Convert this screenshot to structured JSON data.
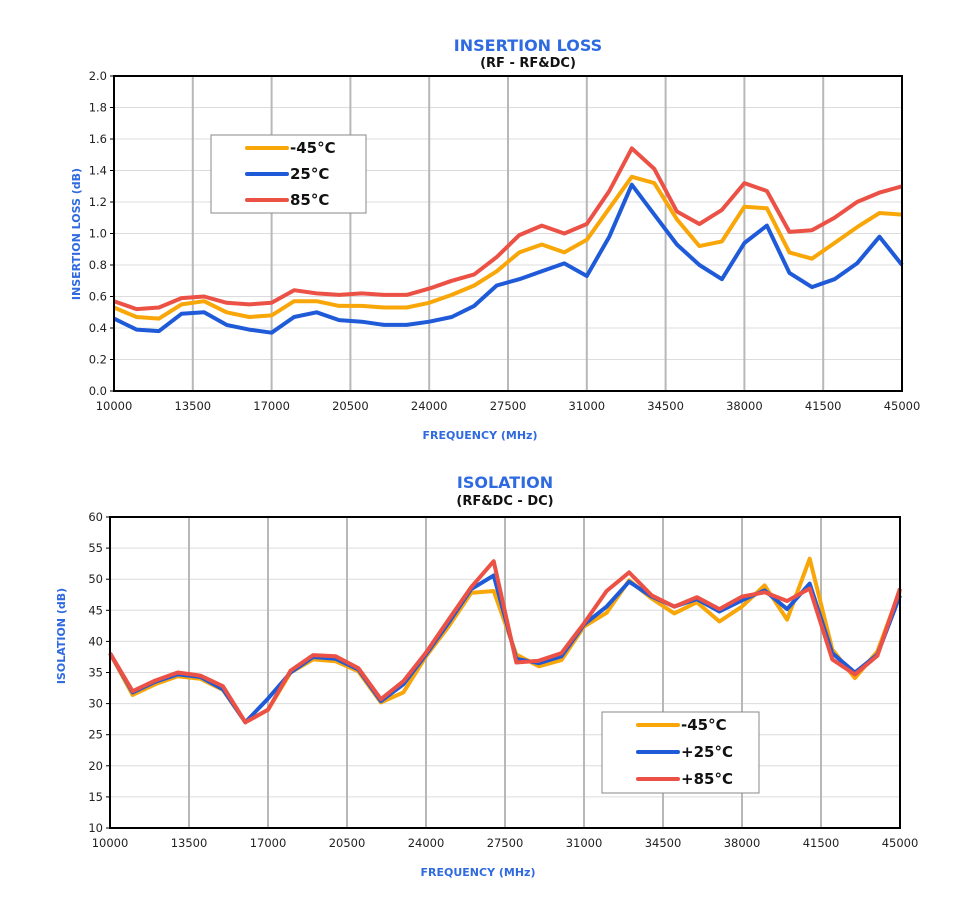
{
  "colors": {
    "-45": "#F8A608",
    "25": "#1F5BD8",
    "85": "#EC5146",
    "title": "#2F6AE0"
  },
  "chart_data": [
    {
      "type": "line",
      "title": "INSERTION LOSS",
      "subtitle": "(RF - RF&DC)",
      "xlabel": "FREQUENCY (MHz)",
      "ylabel": "INSERTION LOSS (dB)",
      "xlim": [
        10000,
        45000
      ],
      "ylim": [
        0,
        2.0
      ],
      "xticks": [
        10000,
        13500,
        17000,
        20500,
        24000,
        27500,
        31000,
        34500,
        38000,
        41500,
        45000
      ],
      "xtick_labels": [
        "10000",
        "13500",
        "17000",
        "20500",
        "24000",
        "27500",
        "31000",
        "34500",
        "38000",
        "41500",
        "45000"
      ],
      "yticks": [
        0,
        0.2,
        0.4,
        0.6,
        0.8,
        1.0,
        1.2,
        1.4,
        1.6,
        1.8,
        2.0
      ],
      "ytick_labels": [
        "0.0",
        "0.2",
        "0.4",
        "0.6",
        "0.8",
        "1.0",
        "1.2",
        "1.4",
        "1.6",
        "1.8",
        "2.0"
      ],
      "grid": true,
      "legend_position": "top-left",
      "x": [
        10000,
        11000,
        12000,
        13000,
        14000,
        15000,
        16000,
        17000,
        18000,
        19000,
        20000,
        21000,
        22000,
        23000,
        24000,
        25000,
        26000,
        27000,
        28000,
        29000,
        30000,
        31000,
        32000,
        33000,
        34000,
        35000,
        36000,
        37000,
        38000,
        39000,
        40000,
        41000,
        42000,
        43000,
        44000,
        45000
      ],
      "series": [
        {
          "name": "-45°C",
          "color_key": "-45",
          "values": [
            0.53,
            0.47,
            0.46,
            0.55,
            0.57,
            0.5,
            0.47,
            0.48,
            0.57,
            0.57,
            0.54,
            0.54,
            0.53,
            0.53,
            0.56,
            0.61,
            0.67,
            0.76,
            0.88,
            0.93,
            0.88,
            0.96,
            1.16,
            1.36,
            1.32,
            1.09,
            0.92,
            0.95,
            1.17,
            1.16,
            0.88,
            0.84,
            0.94,
            1.04,
            1.13,
            1.12
          ]
        },
        {
          "name": "25°C",
          "color_key": "25",
          "values": [
            0.46,
            0.39,
            0.38,
            0.49,
            0.5,
            0.42,
            0.39,
            0.37,
            0.47,
            0.5,
            0.45,
            0.44,
            0.42,
            0.42,
            0.44,
            0.47,
            0.54,
            0.67,
            0.71,
            0.76,
            0.81,
            0.73,
            0.98,
            1.31,
            1.12,
            0.93,
            0.8,
            0.71,
            0.94,
            1.05,
            0.75,
            0.66,
            0.71,
            0.81,
            0.98,
            0.8
          ]
        },
        {
          "name": "85°C",
          "color_key": "85",
          "values": [
            0.57,
            0.52,
            0.53,
            0.59,
            0.6,
            0.56,
            0.55,
            0.56,
            0.64,
            0.62,
            0.61,
            0.62,
            0.61,
            0.61,
            0.65,
            0.7,
            0.74,
            0.85,
            0.99,
            1.05,
            1.0,
            1.06,
            1.27,
            1.54,
            1.41,
            1.14,
            1.06,
            1.15,
            1.32,
            1.27,
            1.01,
            1.02,
            1.1,
            1.2,
            1.26,
            1.3
          ]
        }
      ]
    },
    {
      "type": "line",
      "title": "ISOLATION",
      "subtitle": "(RF&DC - DC)",
      "xlabel": "FREQUENCY (MHz)",
      "ylabel": "ISOLATION (dB)",
      "xlim": [
        10000,
        45000
      ],
      "ylim": [
        10,
        60
      ],
      "xticks": [
        10000,
        13500,
        17000,
        20500,
        24000,
        27500,
        31000,
        34500,
        38000,
        41500,
        45000
      ],
      "xtick_labels": [
        "10000",
        "13500",
        "17000",
        "20500",
        "24000",
        "27500",
        "31000",
        "34500",
        "38000",
        "41500",
        "45000"
      ],
      "yticks": [
        10,
        15,
        20,
        25,
        30,
        35,
        40,
        45,
        50,
        55,
        60
      ],
      "ytick_labels": [
        "10",
        "15",
        "20",
        "25",
        "30",
        "35",
        "40",
        "45",
        "50",
        "55",
        "60"
      ],
      "grid": true,
      "legend_position": "bottom-right",
      "x": [
        10000,
        11000,
        12000,
        13000,
        14000,
        15000,
        16000,
        17000,
        18000,
        19000,
        20000,
        21000,
        22000,
        23000,
        24000,
        25000,
        26000,
        27000,
        28000,
        29000,
        30000,
        31000,
        32000,
        33000,
        34000,
        35000,
        36000,
        37000,
        38000,
        39000,
        40000,
        41000,
        42000,
        43000,
        44000,
        45000
      ],
      "series": [
        {
          "name": "-45°C",
          "color_key": "-45",
          "values": [
            38.1,
            31.4,
            33.1,
            34.4,
            34.0,
            32.2,
            27.0,
            29.0,
            35.0,
            37.1,
            36.8,
            35.2,
            30.2,
            31.8,
            37.6,
            42.4,
            47.8,
            48.1,
            37.9,
            36.0,
            37.0,
            42.4,
            44.6,
            49.8,
            46.9,
            44.5,
            46.3,
            43.2,
            45.6,
            49.0,
            43.5,
            53.3,
            38.7,
            34.1,
            38.4,
            48.2
          ]
        },
        {
          "name": "+25°C",
          "color_key": "25",
          "values": [
            38.1,
            31.8,
            33.5,
            34.7,
            34.3,
            32.3,
            27.0,
            30.8,
            35.0,
            37.5,
            37.2,
            35.5,
            30.4,
            33.1,
            37.9,
            43.0,
            48.4,
            50.6,
            37.2,
            36.5,
            37.6,
            42.7,
            45.6,
            49.6,
            47.2,
            45.6,
            46.8,
            44.8,
            46.6,
            48.2,
            45.2,
            49.3,
            38.1,
            35.0,
            37.9,
            47.4
          ]
        },
        {
          "name": "+85°C",
          "color_key": "85",
          "values": [
            38.1,
            32.0,
            33.7,
            35.0,
            34.5,
            32.8,
            27.0,
            29.0,
            35.3,
            37.8,
            37.6,
            35.7,
            30.7,
            33.6,
            38.2,
            43.5,
            48.7,
            52.9,
            36.6,
            36.9,
            38.1,
            42.9,
            48.1,
            51.1,
            47.4,
            45.6,
            47.1,
            45.2,
            47.2,
            47.9,
            46.5,
            48.5,
            37.1,
            34.7,
            37.7,
            48.5
          ]
        }
      ]
    }
  ]
}
